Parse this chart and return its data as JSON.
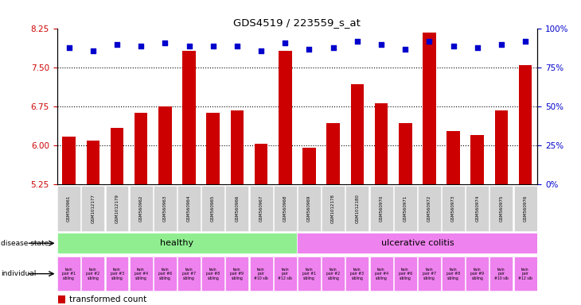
{
  "title": "GDS4519 / 223559_s_at",
  "samples": [
    "GSM560961",
    "GSM1012177",
    "GSM1012179",
    "GSM560962",
    "GSM560963",
    "GSM560964",
    "GSM560965",
    "GSM560966",
    "GSM560967",
    "GSM560968",
    "GSM560969",
    "GSM1012178",
    "GSM1012180",
    "GSM560970",
    "GSM560971",
    "GSM560972",
    "GSM560973",
    "GSM560974",
    "GSM560975",
    "GSM560976"
  ],
  "bar_values": [
    6.18,
    6.09,
    6.35,
    6.63,
    6.75,
    7.83,
    6.63,
    6.68,
    6.03,
    7.83,
    5.96,
    6.43,
    7.18,
    6.82,
    6.43,
    8.18,
    6.28,
    6.2,
    6.68,
    7.55
  ],
  "percentile_values": [
    88,
    86,
    90,
    89,
    91,
    89,
    89,
    89,
    86,
    91,
    87,
    88,
    92,
    90,
    87,
    92,
    89,
    88,
    90,
    92
  ],
  "individuals": [
    "twin\npair #1\nsibling",
    "twin\npair #2\nsibling",
    "twin\npair #3\nsibling",
    "twin\npair #4\nsibling",
    "twin\npair #6\nsibling",
    "twin\npair #7\nsibling",
    "twin\npair #8\nsibling",
    "twin\npair #9\nsibling",
    "twin\npair\n#10 sib",
    "twin\npair\n#12 sib",
    "twin\npair #1\nsibling",
    "twin\npair #2\nsibling",
    "twin\npair #3\nsibling",
    "twin\npair #4\nsibling",
    "twin\npair #6\nsibling",
    "twin\npair #7\nsibling",
    "twin\npair #8\nsibling",
    "twin\npair #9\nsibling",
    "twin\npair\n#10 sib",
    "twin\npair\n#12 sib"
  ],
  "healthy_color": "#90ee90",
  "uc_color": "#ee82ee",
  "individual_color": "#ee82ee",
  "bar_color": "#cc0000",
  "dot_color": "#0000cc",
  "ylim_left": [
    5.25,
    8.25
  ],
  "yticks_left": [
    5.25,
    6.0,
    6.75,
    7.5,
    8.25
  ],
  "ylim_right": [
    0,
    100
  ],
  "yticks_right": [
    0,
    25,
    50,
    75,
    100
  ],
  "n_healthy": 10,
  "n_total": 20,
  "sample_box_color": "#d3d3d3"
}
